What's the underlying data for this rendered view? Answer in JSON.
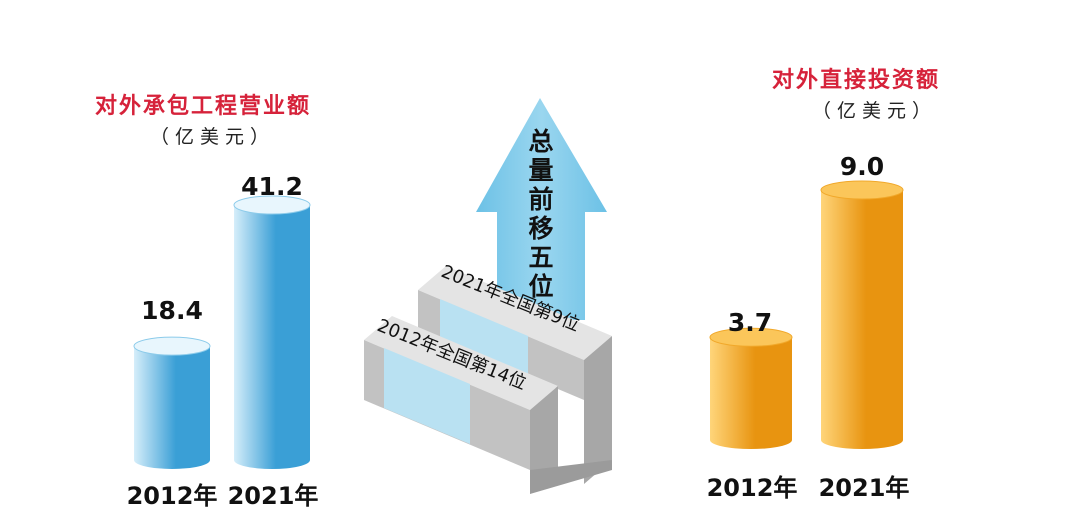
{
  "chart_data": [
    {
      "type": "bar",
      "title": "对外承包工程营业额",
      "subtitle": "（亿美元）",
      "categories": [
        "2012年",
        "2021年"
      ],
      "values": [
        18.4,
        41.2
      ],
      "value_labels": [
        "18.4",
        "41.2"
      ],
      "ylim": [
        0,
        46
      ],
      "color": "#5fb9e6"
    },
    {
      "type": "bar",
      "title": "对外直接投资额",
      "subtitle": "（亿美元）",
      "categories": [
        "2012年",
        "2021年"
      ],
      "values": [
        3.7,
        9.0
      ],
      "value_labels": [
        "3.7",
        "9.0"
      ],
      "ylim": [
        0,
        10.2
      ],
      "color": "#f3a41a"
    }
  ],
  "ranking": {
    "arrow_text": "总量前移五位",
    "step_low": "2012年全国第14位",
    "step_high": "2021年全国第9位",
    "arrow_color": "#7fcbe9",
    "stair_color": "#b9e1f2"
  }
}
